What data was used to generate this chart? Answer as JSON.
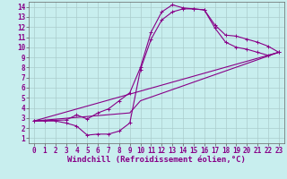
{
  "xlabel": "Windchill (Refroidissement éolien,°C)",
  "xlim": [
    -0.5,
    23.5
  ],
  "ylim": [
    0.5,
    14.5
  ],
  "xticks": [
    0,
    1,
    2,
    3,
    4,
    5,
    6,
    7,
    8,
    9,
    10,
    11,
    12,
    13,
    14,
    15,
    16,
    17,
    18,
    19,
    20,
    21,
    22,
    23
  ],
  "yticks": [
    1,
    2,
    3,
    4,
    5,
    6,
    7,
    8,
    9,
    10,
    11,
    12,
    13,
    14
  ],
  "background_color": "#c8eeee",
  "grid_color": "#aacccc",
  "line_color": "#880088",
  "curve1_x": [
    0,
    1,
    2,
    3,
    4,
    5,
    6,
    7,
    8,
    9,
    10,
    11,
    12,
    13,
    14,
    15,
    16,
    17,
    18,
    19,
    20,
    21,
    22,
    23
  ],
  "curve1_y": [
    2.7,
    2.7,
    2.7,
    2.5,
    2.2,
    1.3,
    1.4,
    1.4,
    1.7,
    2.5,
    7.8,
    10.8,
    12.7,
    13.5,
    13.8,
    13.8,
    13.7,
    11.9,
    10.5,
    10.0,
    9.8,
    9.5,
    9.2,
    9.5
  ],
  "curve2_x": [
    0,
    3,
    4,
    5,
    6,
    7,
    8,
    9,
    10,
    11,
    12,
    13,
    14,
    15,
    16,
    17,
    18,
    19,
    20,
    21,
    22,
    23
  ],
  "curve2_y": [
    2.7,
    2.8,
    3.3,
    2.9,
    3.5,
    3.9,
    4.7,
    5.5,
    8.0,
    11.5,
    13.5,
    14.2,
    13.9,
    13.8,
    13.7,
    12.2,
    11.2,
    11.1,
    10.8,
    10.5,
    10.1,
    9.5
  ],
  "curve3_x": [
    0,
    9,
    10,
    23
  ],
  "curve3_y": [
    2.7,
    3.5,
    4.7,
    9.5
  ],
  "curve4_x": [
    0,
    23
  ],
  "curve4_y": [
    2.7,
    9.5
  ],
  "font_size_label": 6.5,
  "font_size_tick": 5.5
}
